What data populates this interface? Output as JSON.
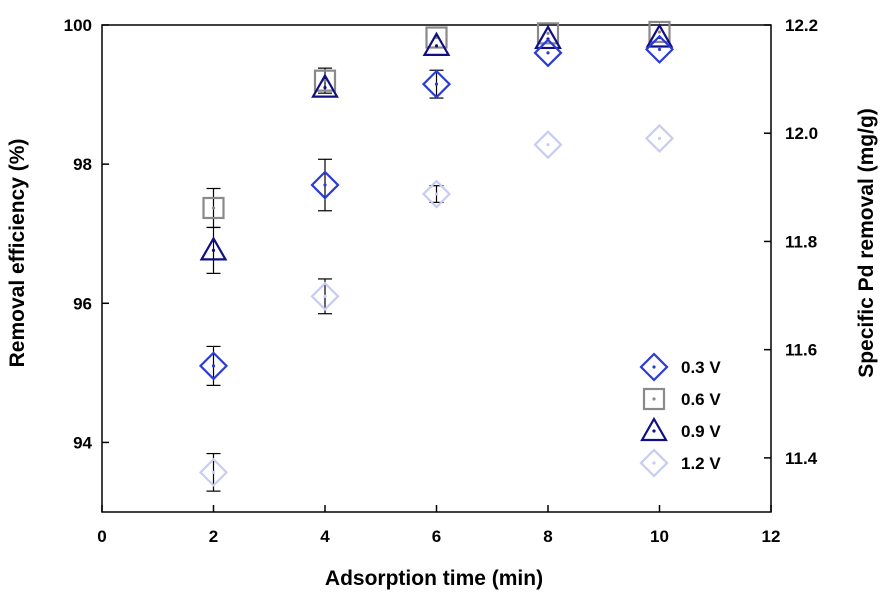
{
  "chart_data": {
    "type": "scatter",
    "title": "",
    "xlabel": "Adsorption time (min)",
    "ylabel": "Removal efficiency (%)",
    "y2label": "Specific Pd removal (mg/g)",
    "xlim": [
      0,
      12
    ],
    "ylim": [
      93,
      100
    ],
    "y2lim": [
      11.3,
      12.2
    ],
    "xticks": [
      "0",
      "2",
      "4",
      "6",
      "8",
      "10",
      "12"
    ],
    "yticks": [
      "94",
      "96",
      "98",
      "100"
    ],
    "y2ticks": [
      "11.4",
      "11.6",
      "11.8",
      "12.0",
      "12.2"
    ],
    "legend_position": "bottom-right",
    "series": [
      {
        "name": "0.3 V",
        "marker": "diamond",
        "color": "#2a3bd6",
        "fill": "none",
        "x": [
          2,
          4,
          6,
          8,
          10
        ],
        "y": [
          95.1,
          97.7,
          99.15,
          99.6,
          99.65
        ],
        "err": [
          0.28,
          0.37,
          0.2,
          0,
          0
        ]
      },
      {
        "name": "0.6 V",
        "marker": "square",
        "color": "#8a8a8a",
        "fill": "none",
        "x": [
          2,
          4,
          6,
          8,
          10
        ],
        "y": [
          97.37,
          99.2,
          99.82,
          99.88,
          99.9
        ],
        "err": [
          0.28,
          0.18,
          0,
          0,
          0
        ]
      },
      {
        "name": "0.9 V",
        "marker": "triangle",
        "color": "#101080",
        "fill": "none",
        "x": [
          2,
          4,
          6,
          8,
          10
        ],
        "y": [
          96.76,
          99.1,
          99.7,
          99.8,
          99.82
        ],
        "err": [
          0.33,
          0,
          0,
          0,
          0
        ]
      },
      {
        "name": "1.2 V",
        "marker": "diamond",
        "color": "#c8ccf2",
        "fill": "none",
        "x": [
          2,
          4,
          6,
          8,
          10
        ],
        "y": [
          93.57,
          96.1,
          97.57,
          98.28,
          98.37
        ],
        "err": [
          0.27,
          0.25,
          0.12,
          0,
          0
        ]
      }
    ]
  }
}
